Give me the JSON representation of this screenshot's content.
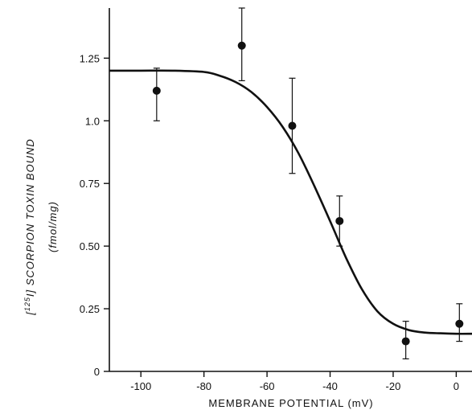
{
  "chart_data": {
    "type": "scatter",
    "title": "",
    "xlabel": "MEMBRANE  POTENTIAL (mV)",
    "ylabel": "[125I] SCORPION TOXIN BOUND",
    "ylabel_prefix": "[",
    "ylabel_sup": "125",
    "ylabel_main": "I] SCORPION TOXIN BOUND",
    "ylabel_unit": "(fmol/mg)",
    "xlim": [
      -110,
      5
    ],
    "ylim": [
      0,
      1.45
    ],
    "x_ticks": [
      -100,
      -80,
      -60,
      -40,
      -20,
      0
    ],
    "x_tick_labels": [
      "-100",
      "-80",
      "-60",
      "-40",
      "-20",
      "0"
    ],
    "y_ticks": [
      0,
      0.25,
      0.5,
      0.75,
      1.0,
      1.25
    ],
    "y_tick_labels": [
      "0",
      "0.25",
      "0.50",
      "0.75",
      "1.0",
      "1.25"
    ],
    "grid": false,
    "series": [
      {
        "kind": "points",
        "x": [
          -95,
          -68,
          -52,
          -37,
          -16,
          1
        ],
        "y": [
          1.12,
          1.3,
          0.98,
          0.6,
          0.12,
          0.19
        ],
        "err_low": [
          1.0,
          1.16,
          0.79,
          0.5,
          0.05,
          0.12
        ],
        "err_high": [
          1.21,
          1.45,
          1.17,
          0.7,
          0.2,
          0.27
        ]
      },
      {
        "kind": "curve",
        "x": [
          -110,
          -100,
          -90,
          -80,
          -75,
          -70,
          -65,
          -60,
          -55,
          -50,
          -45,
          -40,
          -35,
          -30,
          -25,
          -20,
          -15,
          -10,
          -5,
          0,
          5
        ],
        "y": [
          1.2,
          1.2,
          1.2,
          1.195,
          1.18,
          1.155,
          1.115,
          1.055,
          0.975,
          0.87,
          0.74,
          0.6,
          0.455,
          0.33,
          0.24,
          0.19,
          0.165,
          0.155,
          0.152,
          0.15,
          0.15
        ]
      }
    ]
  }
}
